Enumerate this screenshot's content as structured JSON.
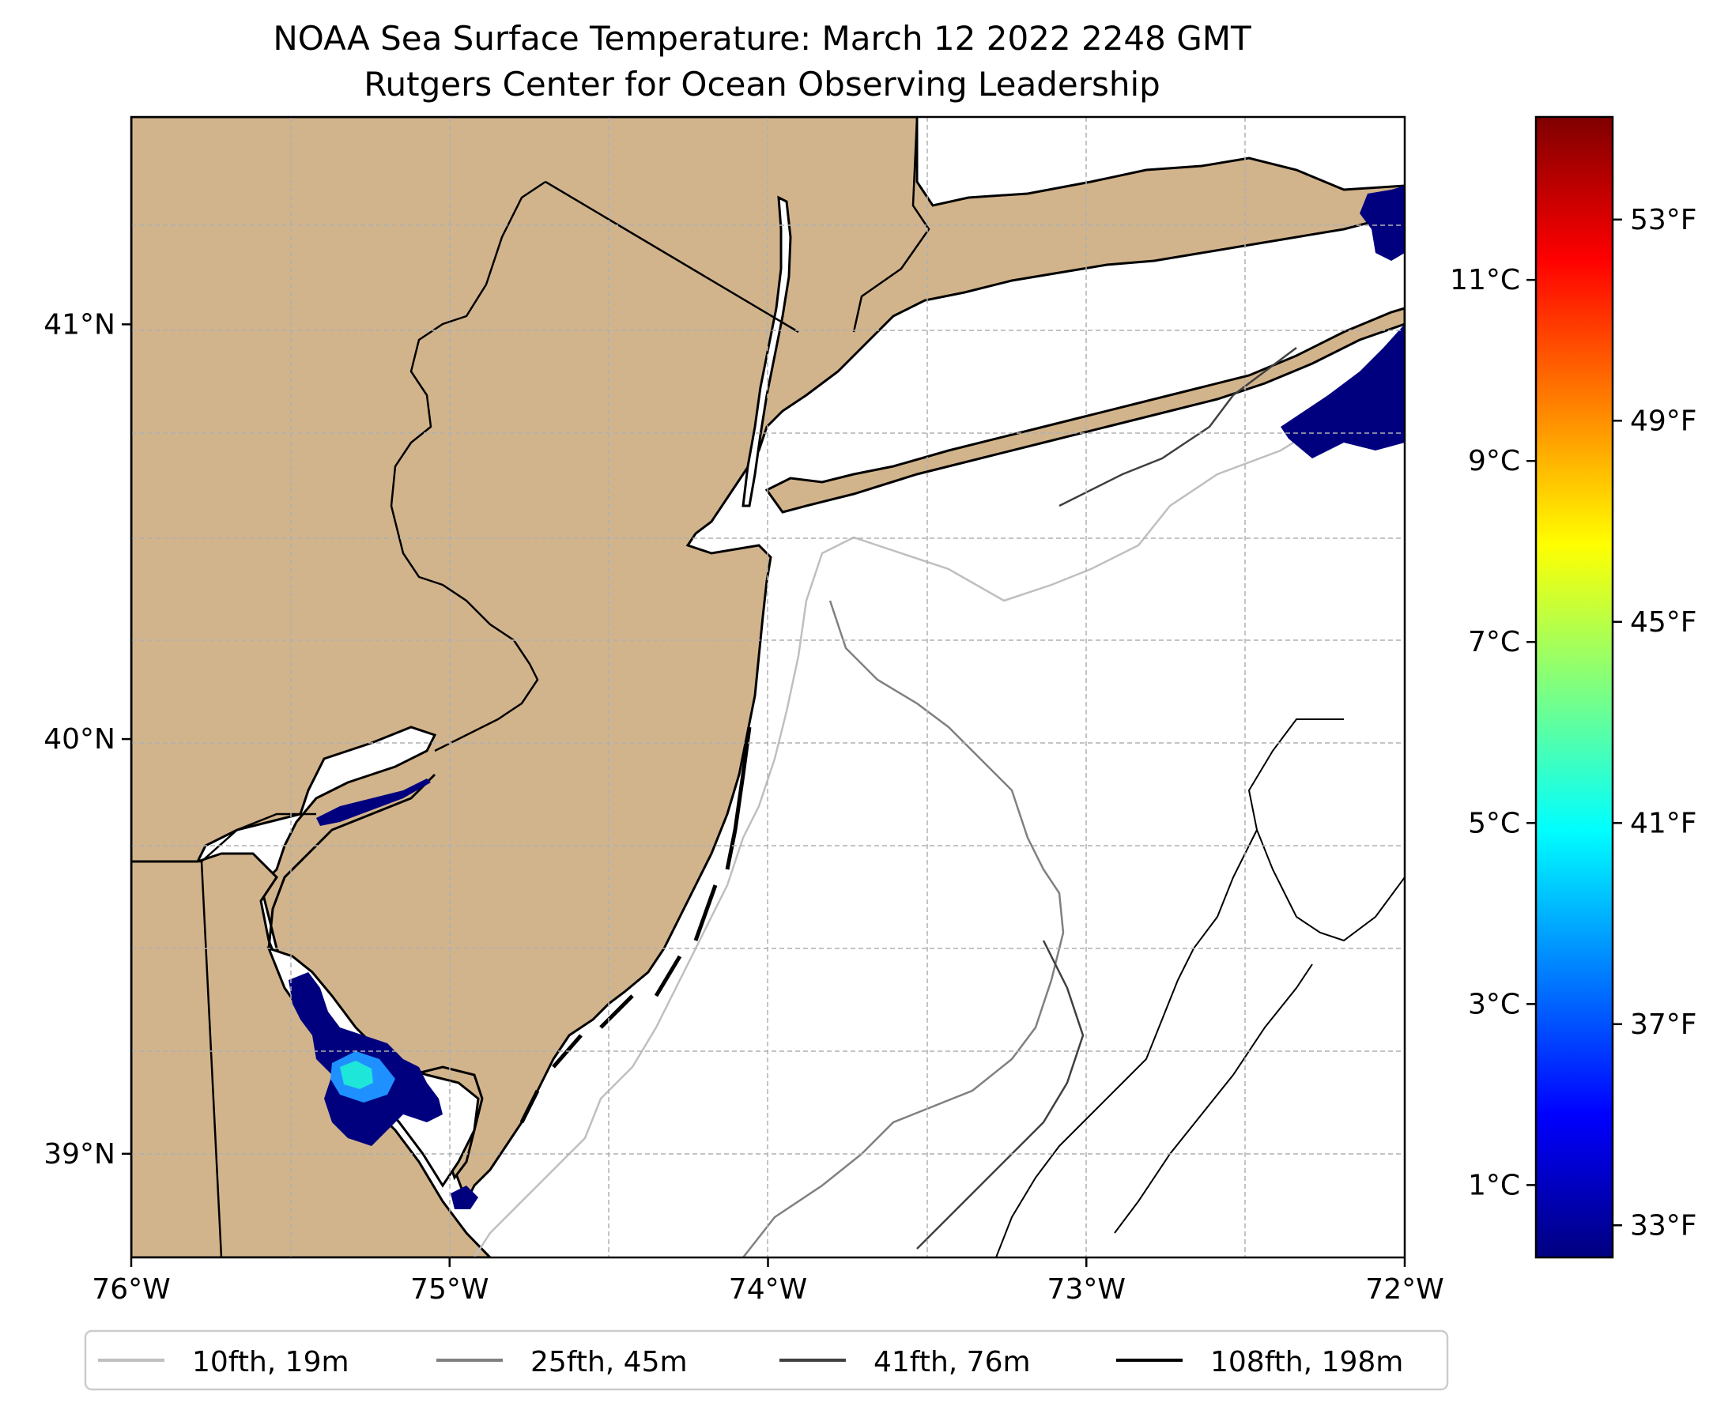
{
  "title": {
    "line1": "NOAA Sea Surface Temperature: March 12 2022 2248 GMT",
    "line2": "Rutgers Center for Ocean Observing Leadership"
  },
  "colors": {
    "land": "#d2b48c",
    "ocean": "#ffffff",
    "coast": "#000000",
    "grid": "#b0b0b0",
    "sst_cold": "#00007f",
    "sst_mid": "#1e90ff",
    "sst_warm": "#1ee6d8"
  },
  "axes": {
    "lon_ticks": [
      {
        "value": -76,
        "label": "76°W"
      },
      {
        "value": -75,
        "label": "75°W"
      },
      {
        "value": -74,
        "label": "74°W"
      },
      {
        "value": -73,
        "label": "73°W"
      },
      {
        "value": -72,
        "label": "72°W"
      }
    ],
    "lat_ticks": [
      {
        "value": 41,
        "label": "41°N"
      },
      {
        "value": 40,
        "label": "40°N"
      },
      {
        "value": 39,
        "label": "39°N"
      }
    ],
    "lon_range": [
      -76,
      -72
    ],
    "lat_range": [
      38.75,
      41.5
    ]
  },
  "colorbar": {
    "c_ticks": [
      {
        "value": 11,
        "label": "11°C"
      },
      {
        "value": 9,
        "label": "9°C"
      },
      {
        "value": 7,
        "label": "7°C"
      },
      {
        "value": 5,
        "label": "5°C"
      },
      {
        "value": 3,
        "label": "3°C"
      },
      {
        "value": 1,
        "label": "1°C"
      }
    ],
    "f_ticks": [
      {
        "value": 53,
        "label": "53°F"
      },
      {
        "value": 49,
        "label": "49°F"
      },
      {
        "value": 45,
        "label": "45°F"
      },
      {
        "value": 41,
        "label": "41°F"
      },
      {
        "value": 37,
        "label": "37°F"
      },
      {
        "value": 33,
        "label": "33°F"
      }
    ],
    "c_range": [
      0.2,
      12.8
    ],
    "stops": [
      "#00007f",
      "#0000ff",
      "#007fff",
      "#00ffff",
      "#7fff7f",
      "#ffff00",
      "#ff7f00",
      "#ff0000",
      "#7f0000"
    ]
  },
  "legend": {
    "items": [
      {
        "label": "10fth, 19m",
        "color": "#bfbfbf"
      },
      {
        "label": "25fth, 45m",
        "color": "#808080"
      },
      {
        "label": "41fth, 76m",
        "color": "#404040"
      },
      {
        "label": "108fth, 198m",
        "color": "#000000"
      }
    ]
  }
}
